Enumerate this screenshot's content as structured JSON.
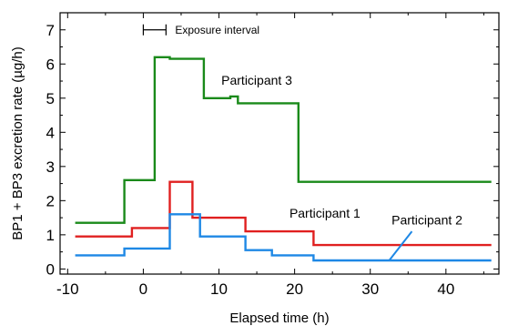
{
  "chart_data": {
    "type": "line",
    "title": "",
    "xlabel": "Elapsed time (h)",
    "ylabel": "BP1 + BP3 excretion rate (µg/h)",
    "xlim": [
      -11,
      47
    ],
    "ylim": [
      -0.15,
      7.5
    ],
    "x_ticks": [
      -10,
      0,
      10,
      20,
      30,
      40
    ],
    "x_tick_labels": [
      "-10",
      "0",
      "10",
      "20",
      "30",
      "40"
    ],
    "y_ticks": [
      0,
      1,
      2,
      3,
      4,
      5,
      6,
      7
    ],
    "y_tick_labels": [
      "0",
      "1",
      "2",
      "3",
      "4",
      "5",
      "6",
      "7"
    ],
    "grid": false,
    "step": true,
    "series": [
      {
        "name": "Participant 3",
        "color": "#1a8a1a",
        "x": [
          -9,
          -2.5,
          -2.5,
          1.5,
          1.5,
          3.5,
          3.5,
          8,
          8,
          11.5,
          11.5,
          12.5,
          12.5,
          20.5,
          20.5,
          46
        ],
        "y": [
          1.35,
          1.35,
          2.6,
          2.6,
          6.2,
          6.2,
          6.15,
          6.15,
          5.0,
          5.0,
          5.05,
          5.05,
          4.85,
          4.85,
          2.55,
          2.55
        ]
      },
      {
        "name": "Participant 1",
        "color": "#e02020",
        "x": [
          -9,
          -1.5,
          -1.5,
          3.5,
          3.5,
          6.5,
          6.5,
          13.5,
          13.5,
          22.5,
          22.5,
          46
        ],
        "y": [
          0.95,
          0.95,
          1.2,
          1.2,
          2.55,
          2.55,
          1.5,
          1.5,
          1.1,
          1.1,
          0.7,
          0.7
        ]
      },
      {
        "name": "Participant 2",
        "color": "#1e88e5",
        "x": [
          -9,
          -2.5,
          -2.5,
          3.5,
          3.5,
          7.5,
          7.5,
          13.5,
          13.5,
          17,
          17,
          22.5,
          22.5,
          46
        ],
        "y": [
          0.4,
          0.4,
          0.6,
          0.6,
          1.6,
          1.6,
          0.95,
          0.95,
          0.55,
          0.55,
          0.4,
          0.4,
          0.25,
          0.25
        ]
      }
    ],
    "exposure_interval": {
      "label": "Exposure interval",
      "x": [
        0,
        3
      ],
      "y": 7.0
    },
    "annotations": [
      {
        "text": "Participant 3",
        "x": 15,
        "y": 5.4
      },
      {
        "text": "Participant 1",
        "x": 24,
        "y": 1.5
      },
      {
        "text": "Participant 2",
        "x": 37.5,
        "y": 1.3,
        "leader_from": [
          32.5,
          0.25
        ],
        "leader_to": [
          35.5,
          1.1
        ]
      }
    ]
  }
}
